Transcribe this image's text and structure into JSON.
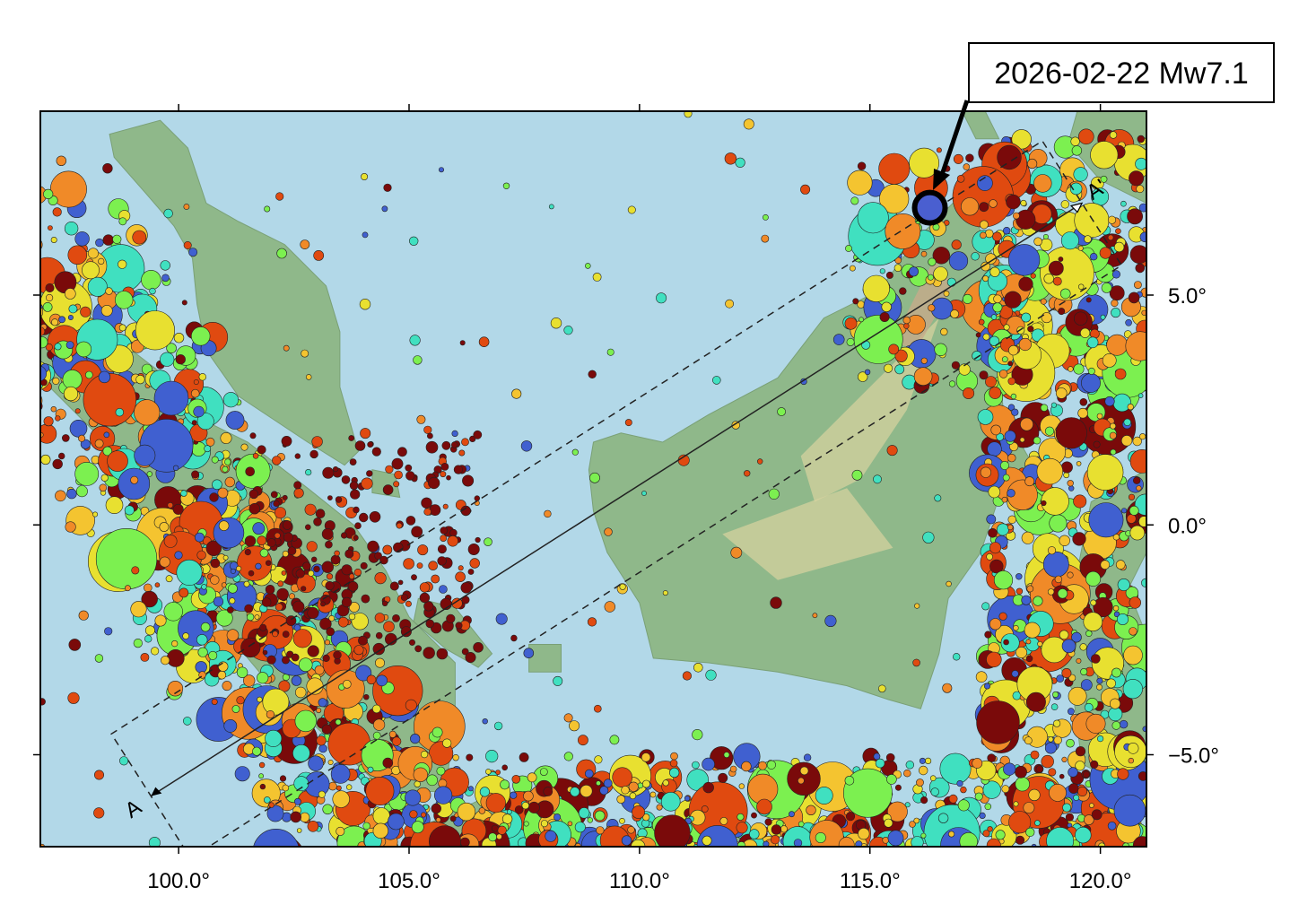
{
  "map": {
    "lon_range": [
      97.0,
      121.0
    ],
    "lat_range": [
      -7.0,
      9.0
    ],
    "x_ticks": [
      {
        "value": 100,
        "label": "100.0°"
      },
      {
        "value": 105,
        "label": "105.0°"
      },
      {
        "value": 110,
        "label": "110.0°"
      },
      {
        "value": 115,
        "label": "115.0°"
      },
      {
        "value": 120,
        "label": "120.0°"
      }
    ],
    "y_ticks": [
      {
        "value": 5,
        "label": "5.0°"
      },
      {
        "value": 0,
        "label": "0.0°"
      },
      {
        "value": -5,
        "label": "−5.0°"
      }
    ],
    "colors": {
      "ocean": "#b2d8e8",
      "land_low": "#8fb88a",
      "land_mid": "#d9d3a0",
      "land_high": "#c9a98a",
      "frame": "#000000"
    }
  },
  "annotation": {
    "label": "2026-02-22 Mw7.1",
    "event_lon": 116.3,
    "event_lat": 6.9,
    "event_color": "#4a5fd0"
  },
  "profile": {
    "start_label": "A",
    "end_label": "A'",
    "start": [
      99.4,
      -5.9
    ],
    "end": [
      119.6,
      7.0
    ],
    "half_width_deg": 1.6
  },
  "legend_colors": [
    "#7a0a0a",
    "#e04a10",
    "#f08a28",
    "#f4c430",
    "#e8e030",
    "#7cf050",
    "#40e0c0",
    "#4060d0"
  ],
  "point_groups": [
    {
      "name": "sumatra-trench",
      "lon": [
        97.0,
        104.5
      ],
      "lat": [
        -7.0,
        6.0
      ],
      "count": 900,
      "trend": "sumatra"
    },
    {
      "name": "java-trench",
      "lon": [
        104.0,
        121.0
      ],
      "lat": [
        -7.0,
        -5.0
      ],
      "count": 700,
      "trend": "java"
    },
    {
      "name": "sulawesi",
      "lon": [
        117.5,
        121.0
      ],
      "lat": [
        -5.5,
        8.5
      ],
      "count": 700,
      "trend": "box"
    },
    {
      "name": "sabah",
      "lon": [
        114.5,
        118.5
      ],
      "lat": [
        3.0,
        8.0
      ],
      "count": 180,
      "trend": "box"
    },
    {
      "name": "scattered",
      "lon": [
        97.0,
        121.0
      ],
      "lat": [
        -7.0,
        9.0
      ],
      "count": 220,
      "trend": "box"
    },
    {
      "name": "malacca",
      "lon": [
        101.5,
        106.5
      ],
      "lat": [
        -3.0,
        2.0
      ],
      "count": 260,
      "trend": "box"
    }
  ]
}
